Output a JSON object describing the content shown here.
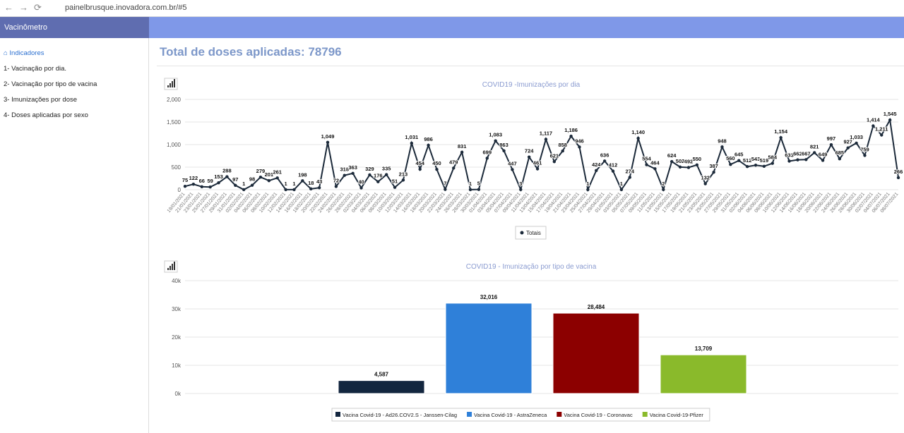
{
  "browser": {
    "url": "painelbrusque.inovadora.com.br/#5"
  },
  "sidebar": {
    "brand": "Vacinômetro",
    "items": [
      "Indicadores",
      "1- Vacinação por dia.",
      "2- Vacinação por tipo de vacina",
      "3- Imunizações por dose",
      "4- Doses aplicadas por sexo"
    ]
  },
  "page_title": "Total de doses aplicadas: 78796",
  "chart_data": [
    {
      "type": "line",
      "title": "COVID19 -Imunizações por dia",
      "categories": [
        "19/01/2021",
        "21/01/2021",
        "23/01/2021",
        "25/01/2021",
        "27/01/2021",
        "29/01/2021",
        "31/01/2021",
        "02/02/2021",
        "04/02/2021",
        "06/02/2021",
        "08/02/2021",
        "10/02/2021",
        "12/02/2021",
        "14/02/2021",
        "16/02/2021",
        "18/02/2021",
        "20/02/2021",
        "22/02/2021",
        "24/02/2021",
        "26/02/2021",
        "28/02/2021",
        "02/03/2021",
        "04/03/2021",
        "06/03/2021",
        "08/03/2021",
        "10/03/2021",
        "12/03/2021",
        "14/03/2021",
        "16/03/2021",
        "18/03/2021",
        "20/03/2021",
        "22/03/2021",
        "24/03/2021",
        "26/03/2021",
        "28/03/2021",
        "30/03/2021",
        "01/04/2021",
        "03/04/2021",
        "05/04/2021",
        "07/04/2021",
        "09/04/2021",
        "11/04/2021",
        "13/04/2021",
        "15/04/2021",
        "17/04/2021",
        "19/04/2021",
        "21/04/2021",
        "23/04/2021",
        "25/04/2021",
        "27/04/2021",
        "29/04/2021",
        "01/05/2021",
        "03/05/2021",
        "05/05/2021",
        "07/05/2021",
        "09/05/2021",
        "11/05/2021",
        "13/05/2021",
        "15/05/2021",
        "17/05/2021",
        "19/05/2021",
        "21/05/2021",
        "23/05/2021",
        "25/05/2021",
        "27/05/2021",
        "29/05/2021",
        "31/05/2021",
        "02/06/2021",
        "04/06/2021",
        "06/06/2021",
        "08/06/2021",
        "10/06/2021",
        "12/06/2021",
        "14/06/2021",
        "16/06/2021",
        "18/06/2021",
        "20/06/2021",
        "22/06/2021",
        "24/06/2021",
        "26/06/2021",
        "28/06/2021",
        "30/06/2021",
        "02/07/2021",
        "04/07/2021",
        "06/07/2021",
        "08/07/2021"
      ],
      "series": [
        {
          "name": "Totais",
          "color": "#1c2a3a",
          "values": [
            75,
            122,
            66,
            59,
            153,
            288,
            97,
            1,
            98,
            279,
            201,
            261,
            1,
            1,
            198,
            18,
            43,
            1049,
            72,
            318,
            363,
            40,
            329,
            176,
            335,
            51,
            213,
            1031,
            454,
            986,
            450,
            7,
            479,
            831,
            1,
            5,
            699,
            1083,
            863,
            447,
            3,
            724,
            461,
            1117,
            621,
            858,
            1186,
            946,
            1,
            424,
            636,
            412,
            1,
            274,
            1140,
            554,
            464,
            2,
            624,
            502,
            492,
            550,
            132,
            387,
            948,
            560,
            645,
            512,
            543,
            519,
            584,
            1154,
            633,
            662,
            667,
            821,
            649,
            997,
            685,
            927,
            1033,
            759,
            1414,
            1211,
            1545,
            266
          ],
          "value_labels": [
            null,
            null,
            null,
            null,
            null,
            null,
            null,
            null,
            null,
            null,
            null,
            null,
            null,
            null,
            null,
            null,
            null,
            "1,049",
            null,
            null,
            null,
            null,
            null,
            null,
            null,
            null,
            null,
            "1,031",
            null,
            null,
            null,
            null,
            null,
            null,
            null,
            null,
            null,
            "1,083",
            null,
            null,
            null,
            null,
            null,
            "1,117",
            null,
            null,
            "1,186",
            null,
            null,
            null,
            null,
            null,
            null,
            null,
            "1,140",
            null,
            null,
            null,
            null,
            null,
            null,
            null,
            null,
            null,
            null,
            null,
            null,
            null,
            null,
            null,
            null,
            "1,154",
            null,
            null,
            null,
            null,
            null,
            null,
            null,
            null,
            "1,033",
            null,
            "1,414",
            "1,211",
            "1,545",
            null
          ]
        }
      ],
      "ylim": [
        0,
        2000
      ],
      "yticks": [
        0,
        500,
        {
          "value": 1000,
          "label": "1,000"
        },
        {
          "value": 1500,
          "label": "1,500"
        },
        {
          "value": 2000,
          "label": "2,000"
        }
      ],
      "grid": true
    },
    {
      "type": "bar",
      "title": "COVID19 - Imunização por tipo de vacina",
      "series": [
        {
          "name": "Vacina Covid-19 - Ad26.COV2.S - Janssen-Cilag",
          "color": "#13263f",
          "values": [
            4587
          ],
          "value_labels": [
            "4,587"
          ]
        },
        {
          "name": "Vacina Covid-19 - AstraZeneca",
          "color": "#2f80d9",
          "values": [
            32016
          ],
          "value_labels": [
            "32,016"
          ]
        },
        {
          "name": "Vacina Covid-19 - Coronavac",
          "color": "#8c0000",
          "values": [
            28484
          ],
          "value_labels": [
            "28,484"
          ]
        },
        {
          "name": "Vacina Covid-19-Pfizer",
          "color": "#8aba2b",
          "values": [
            13709
          ],
          "value_labels": [
            "13,709"
          ]
        }
      ],
      "ylim": [
        0,
        40000
      ],
      "yticks": [
        {
          "value": 0,
          "label": "0k"
        },
        {
          "value": 10000,
          "label": "10k"
        },
        {
          "value": 20000,
          "label": "20k"
        },
        {
          "value": 30000,
          "label": "30k"
        },
        {
          "value": 40000,
          "label": "40k"
        }
      ],
      "grid": true
    }
  ]
}
